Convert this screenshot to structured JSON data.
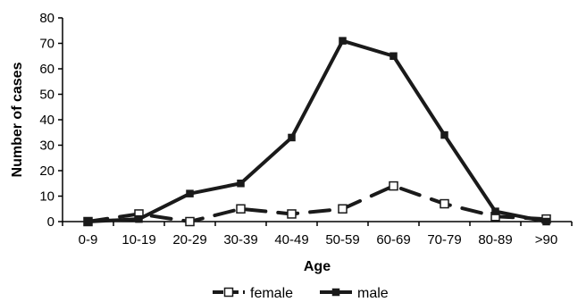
{
  "chart_data": {
    "type": "line",
    "title": "",
    "xlabel": "Age",
    "ylabel": "Number of cases",
    "categories": [
      "0-9",
      "10-19",
      "20-29",
      "30-39",
      "40-49",
      "50-59",
      "60-69",
      "70-79",
      "80-89",
      ">90"
    ],
    "ylim": [
      0,
      80
    ],
    "yticks": [
      0,
      10,
      20,
      30,
      40,
      50,
      60,
      70,
      80
    ],
    "grid": false,
    "legend_position": "bottom",
    "series": [
      {
        "name": "female",
        "values": [
          0,
          3,
          0,
          5,
          3,
          5,
          14,
          7,
          2,
          1
        ],
        "line_style": "dashed",
        "marker": "open-square",
        "color": "#1a1a1a"
      },
      {
        "name": "male",
        "values": [
          0,
          1,
          11,
          15,
          33,
          71,
          65,
          34,
          4,
          0
        ],
        "line_style": "solid",
        "marker": "filled-square",
        "color": "#1a1a1a"
      }
    ]
  }
}
